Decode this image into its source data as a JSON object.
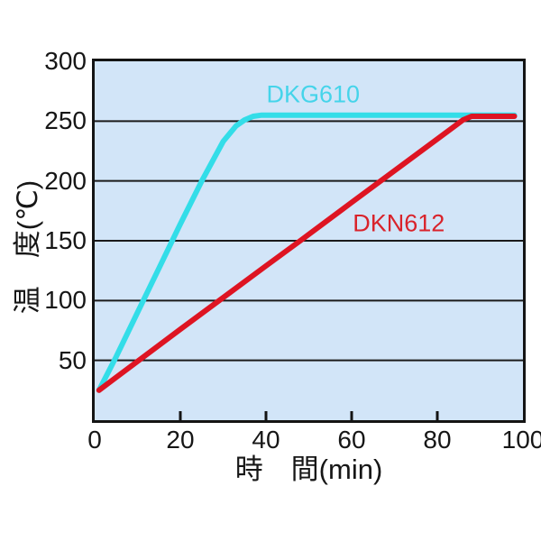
{
  "page": {
    "background": "#ffffff",
    "text_color": "#161616"
  },
  "chart_data": {
    "type": "line",
    "title": "",
    "xlabel": "時　間(min)",
    "ylabel": "温　度(℃)",
    "xlim": [
      0,
      100
    ],
    "ylim": [
      0,
      300
    ],
    "x_ticks": [
      0,
      20,
      40,
      60,
      80,
      100
    ],
    "y_ticks": [
      50,
      100,
      150,
      200,
      250,
      300
    ],
    "grid": "horizontal-only",
    "grid_color": "#1b1b1b",
    "border_color": "#141414",
    "plot_bg": "#d2e5f8",
    "legend_position": "inline-annotations",
    "series": [
      {
        "name": "DKG610",
        "color": "#33dde8",
        "label_color": "#45d4ea",
        "label_at": [
          51,
          272
        ],
        "points": [
          [
            1,
            25
          ],
          [
            5,
            53
          ],
          [
            10,
            90
          ],
          [
            15,
            127
          ],
          [
            20,
            164
          ],
          [
            25,
            200
          ],
          [
            30,
            233
          ],
          [
            33,
            246
          ],
          [
            35,
            251
          ],
          [
            37,
            254
          ],
          [
            39,
            255
          ],
          [
            98,
            255
          ]
        ]
      },
      {
        "name": "DKN612",
        "color": "#de1422",
        "label_color": "#d9232b",
        "label_at": [
          71,
          164
        ],
        "points": [
          [
            1,
            25
          ],
          [
            20,
            76
          ],
          [
            40,
            129
          ],
          [
            48,
            150
          ],
          [
            60,
            182
          ],
          [
            80,
            235
          ],
          [
            86,
            251
          ],
          [
            88,
            254
          ],
          [
            98,
            254
          ]
        ]
      }
    ]
  }
}
